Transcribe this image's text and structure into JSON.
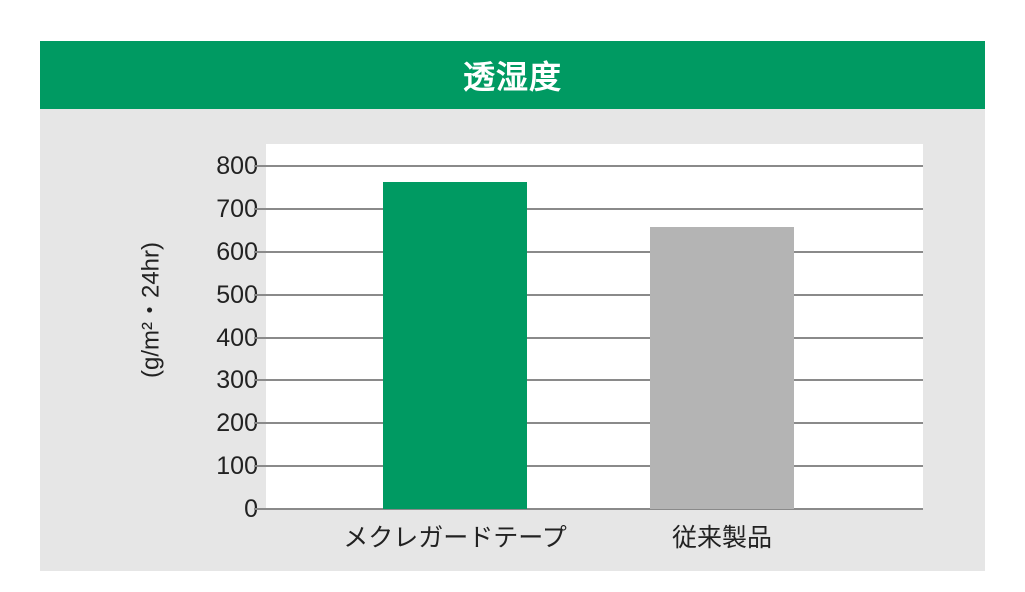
{
  "header": {
    "title": "透湿度"
  },
  "colors": {
    "header_bg": "#009a62",
    "panel_bg": "#e6e6e6",
    "bar_meku": "#009a62",
    "bar_conventional": "#b4b4b4",
    "grid": "#8a8a8a"
  },
  "chart_data": {
    "type": "bar",
    "title": "透湿度",
    "xlabel": "",
    "ylabel": "(g/m²・24hr)",
    "categories": [
      "メクレガードテープ",
      "従来製品"
    ],
    "values": [
      763,
      658
    ],
    "ylim": [
      0,
      800
    ],
    "yticks": [
      "0",
      "100",
      "200",
      "300",
      "400",
      "500",
      "600",
      "700",
      "800"
    ],
    "grid": true,
    "legend": null
  }
}
